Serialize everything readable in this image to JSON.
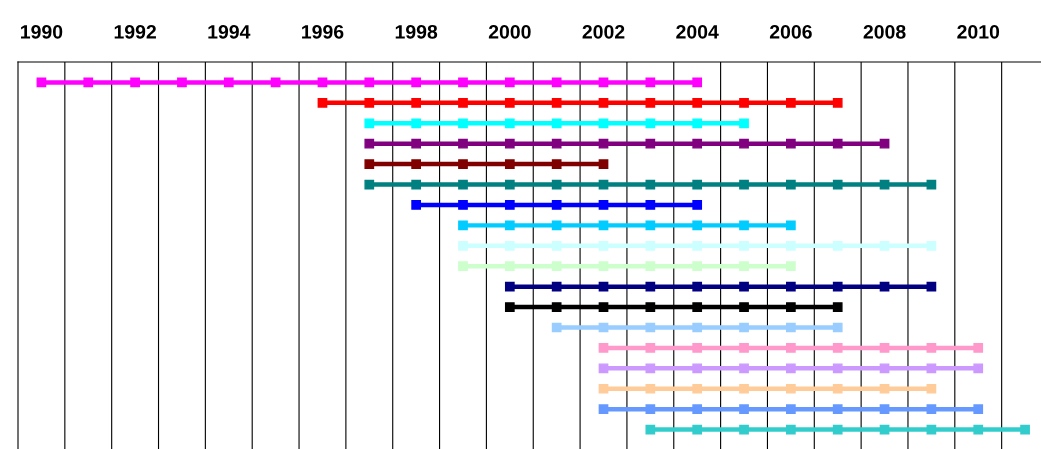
{
  "chart_data": {
    "type": "bar",
    "orientation": "horizontal",
    "marker": "square",
    "legend": false,
    "categories": [
      null,
      null,
      null,
      null,
      null,
      null,
      null,
      null,
      null,
      null,
      null,
      null,
      null,
      null,
      null,
      null,
      null,
      null
    ],
    "base": [
      1990,
      1996,
      1997,
      1997,
      1997,
      1997,
      1998,
      1999,
      1999,
      1999,
      2000,
      2000,
      2001,
      2002,
      2002,
      2002,
      2002,
      2003
    ],
    "values": [
      14,
      11,
      8,
      11,
      5,
      12,
      6,
      7,
      10,
      7,
      9,
      7,
      6,
      8,
      8,
      7,
      8,
      8
    ],
    "colors": [
      "#ff00ff",
      "#ff0000",
      "#00ffff",
      "#800080",
      "#800000",
      "#008080",
      "#0000ff",
      "#00ccff",
      "#ccffff",
      "#ccffcc",
      "#000080",
      "#000000",
      "#99ccff",
      "#ff99cc",
      "#cc99ff",
      "#ffcc99",
      "#6699ff",
      "#33cccc"
    ],
    "xlim": [
      1989.5,
      2011.34
    ],
    "xticks": [
      1990,
      1992,
      1994,
      1996,
      1998,
      2000,
      2002,
      2004,
      2006,
      2008,
      2010
    ],
    "ref_lines": [
      {
        "axis": "x",
        "value": 1990.5,
        "color": "#000000"
      },
      {
        "axis": "x",
        "value": 1991.5,
        "color": "#000000"
      },
      {
        "axis": "x",
        "value": 1992.5,
        "color": "#000000"
      },
      {
        "axis": "x",
        "value": 1993.5,
        "color": "#000000"
      },
      {
        "axis": "x",
        "value": 1994.5,
        "color": "#000000"
      },
      {
        "axis": "x",
        "value": 1995.5,
        "color": "#000000"
      },
      {
        "axis": "x",
        "value": 1996.5,
        "color": "#000000"
      },
      {
        "axis": "x",
        "value": 1997.5,
        "color": "#000000"
      },
      {
        "axis": "x",
        "value": 1998.5,
        "color": "#000000"
      },
      {
        "axis": "x",
        "value": 1999.5,
        "color": "#000000"
      },
      {
        "axis": "x",
        "value": 2000.5,
        "color": "#000000"
      },
      {
        "axis": "x",
        "value": 2001.5,
        "color": "#000000"
      },
      {
        "axis": "x",
        "value": 2002.5,
        "color": "#000000"
      },
      {
        "axis": "x",
        "value": 2003.5,
        "color": "#000000"
      },
      {
        "axis": "x",
        "value": 2004.5,
        "color": "#000000"
      },
      {
        "axis": "x",
        "value": 2005.5,
        "color": "#000000"
      },
      {
        "axis": "x",
        "value": 2006.5,
        "color": "#000000"
      },
      {
        "axis": "x",
        "value": 2007.5,
        "color": "#000000"
      },
      {
        "axis": "x",
        "value": 2008.5,
        "color": "#000000"
      },
      {
        "axis": "x",
        "value": 2009.5,
        "color": "#000000"
      },
      {
        "axis": "x",
        "value": 2010.5,
        "color": "#000000"
      }
    ]
  }
}
